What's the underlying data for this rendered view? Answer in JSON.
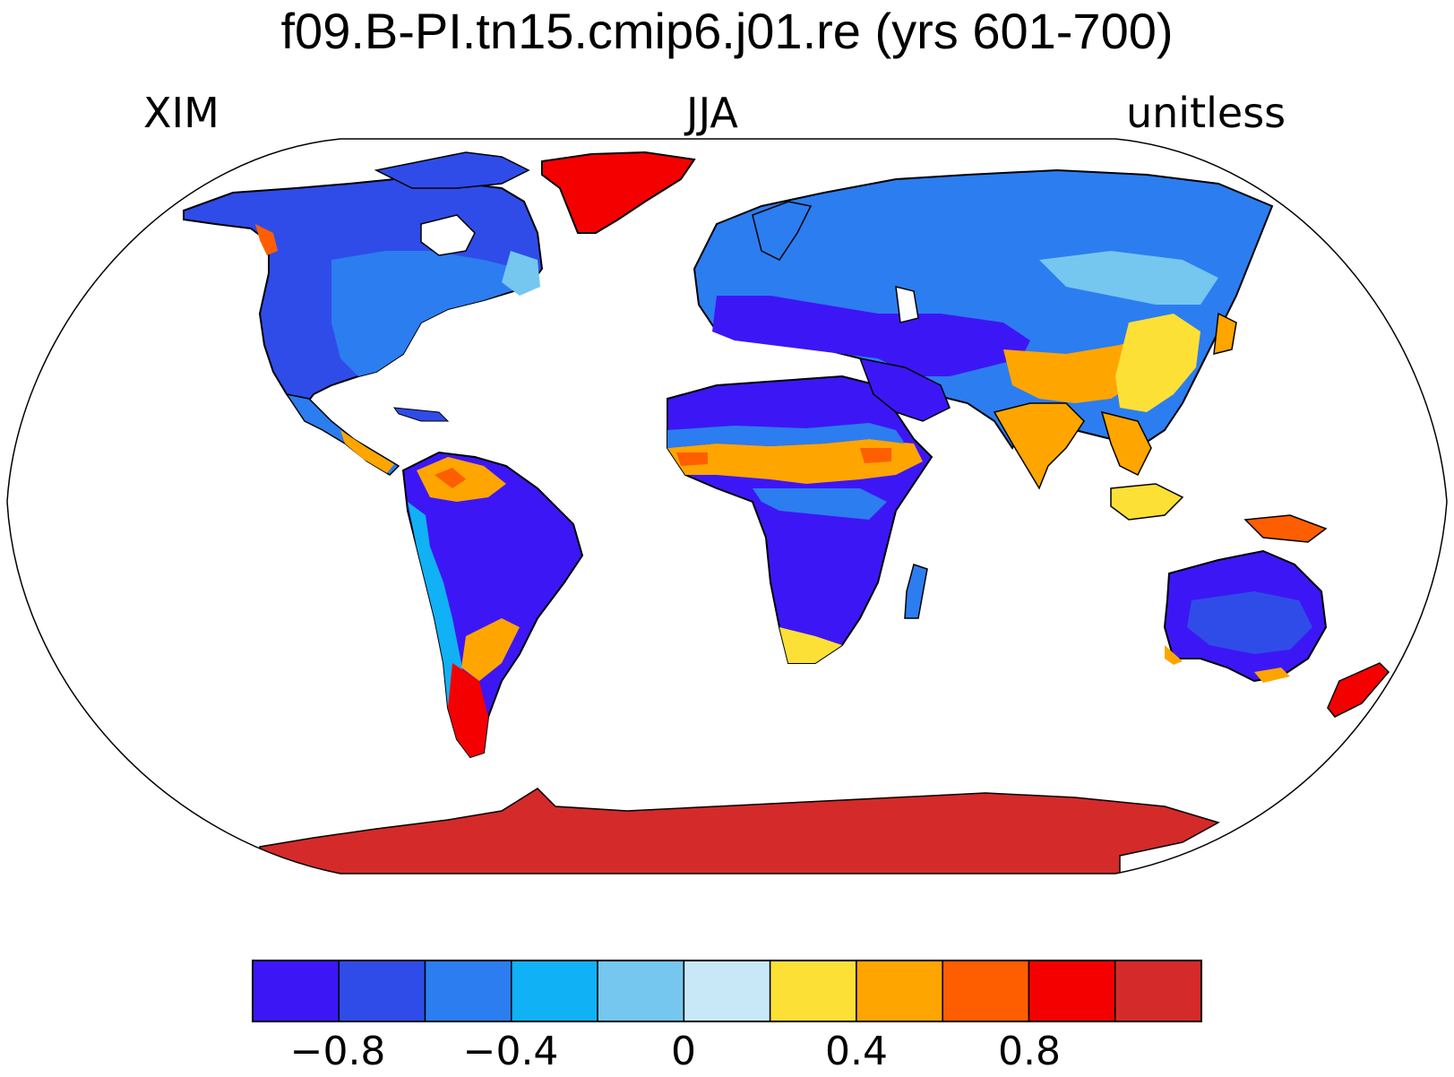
{
  "title": "f09.B-PI.tn15.cmip6.j01.re (yrs 601-700)",
  "subtitle_left": "XIM",
  "subtitle_center": "JJA",
  "subtitle_right": "unitless",
  "colorbar": {
    "colors": [
      "#3d16f5",
      "#2f4ce8",
      "#2c7df0",
      "#11b1f5",
      "#75c7ef",
      "#c8e8f8",
      "#fde036",
      "#fea500",
      "#fe5e00",
      "#f50000",
      "#d42a2a"
    ],
    "tick_labels": [
      "−0.8",
      "−0.4",
      "0",
      "0.4",
      "0.8"
    ]
  },
  "chart_data": {
    "type": "map",
    "projection": "Robinson",
    "variable": "XIM",
    "season": "JJA",
    "units": "unitless",
    "levels": [
      -0.8,
      -0.6,
      -0.4,
      -0.2,
      0,
      0.2,
      0.4,
      0.6,
      0.8
    ],
    "regions": [
      {
        "name": "Greenland",
        "level": "above 0.8"
      },
      {
        "name": "Antarctica",
        "level": "above 1.0"
      },
      {
        "name": "South Asia / Himalaya",
        "level": "0.4 to 1.0"
      },
      {
        "name": "Sahel",
        "level": "0.2 to 0.8"
      },
      {
        "name": "Southern Africa",
        "level": "below -0.8"
      },
      {
        "name": "Australia interior",
        "level": "below -0.6"
      },
      {
        "name": "Amazon",
        "level": "below -0.8"
      },
      {
        "name": "Patagonia",
        "level": "0.6 to 1.0"
      },
      {
        "name": "New Zealand",
        "level": "0.6 to 1.0"
      },
      {
        "name": "Eurasia north",
        "level": "-0.8 to -0.4"
      },
      {
        "name": "North America",
        "level": "-0.8 to -0.2"
      }
    ]
  }
}
